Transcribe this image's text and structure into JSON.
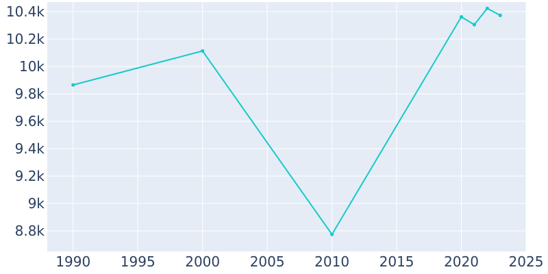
{
  "chart_data": {
    "type": "line",
    "title": "",
    "xlabel": "",
    "ylabel": "",
    "xlim": [
      1988,
      2025
    ],
    "ylim": [
      8650,
      10470
    ],
    "x_ticks": [
      1990,
      1995,
      2000,
      2005,
      2010,
      2015,
      2020,
      2025
    ],
    "x_tick_labels": [
      "1990",
      "1995",
      "2000",
      "2005",
      "2010",
      "2015",
      "2020",
      "2025"
    ],
    "y_ticks": [
      8800,
      9000,
      9200,
      9400,
      9600,
      9800,
      10000,
      10200,
      10400
    ],
    "y_tick_labels": [
      "8.8k",
      "9k",
      "9.2k",
      "9.4k",
      "9.6k",
      "9.8k",
      "10k",
      "10.2k",
      "10.4k"
    ],
    "grid": true,
    "legend": "none",
    "colors": {
      "line": "#17c9c9",
      "plot_bg": "#e5ecf6",
      "grid": "#ffffff",
      "text": "#2a3f5f"
    },
    "series": [
      {
        "x": [
          1990,
          2000,
          2010,
          2020,
          2021,
          2022,
          2023
        ],
        "y": [
          9865,
          10113,
          8774,
          10362,
          10305,
          10424,
          10373
        ]
      }
    ]
  }
}
